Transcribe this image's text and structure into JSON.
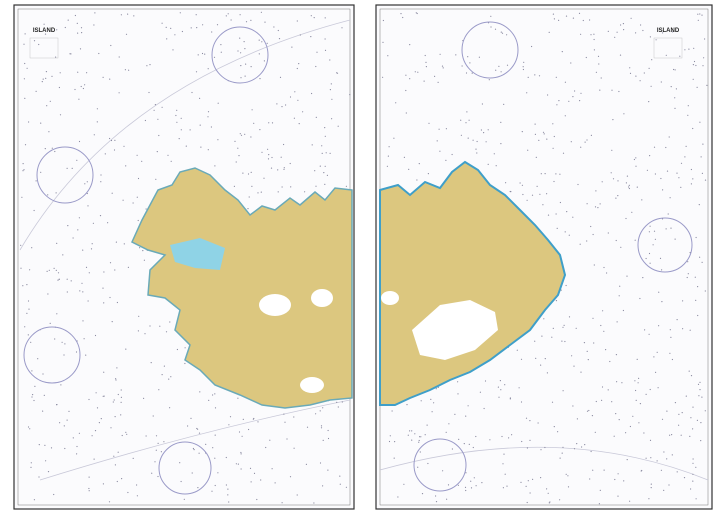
{
  "sheets": [
    {
      "title": "ISLAND"
    },
    {
      "title": "ISLAND"
    }
  ]
}
